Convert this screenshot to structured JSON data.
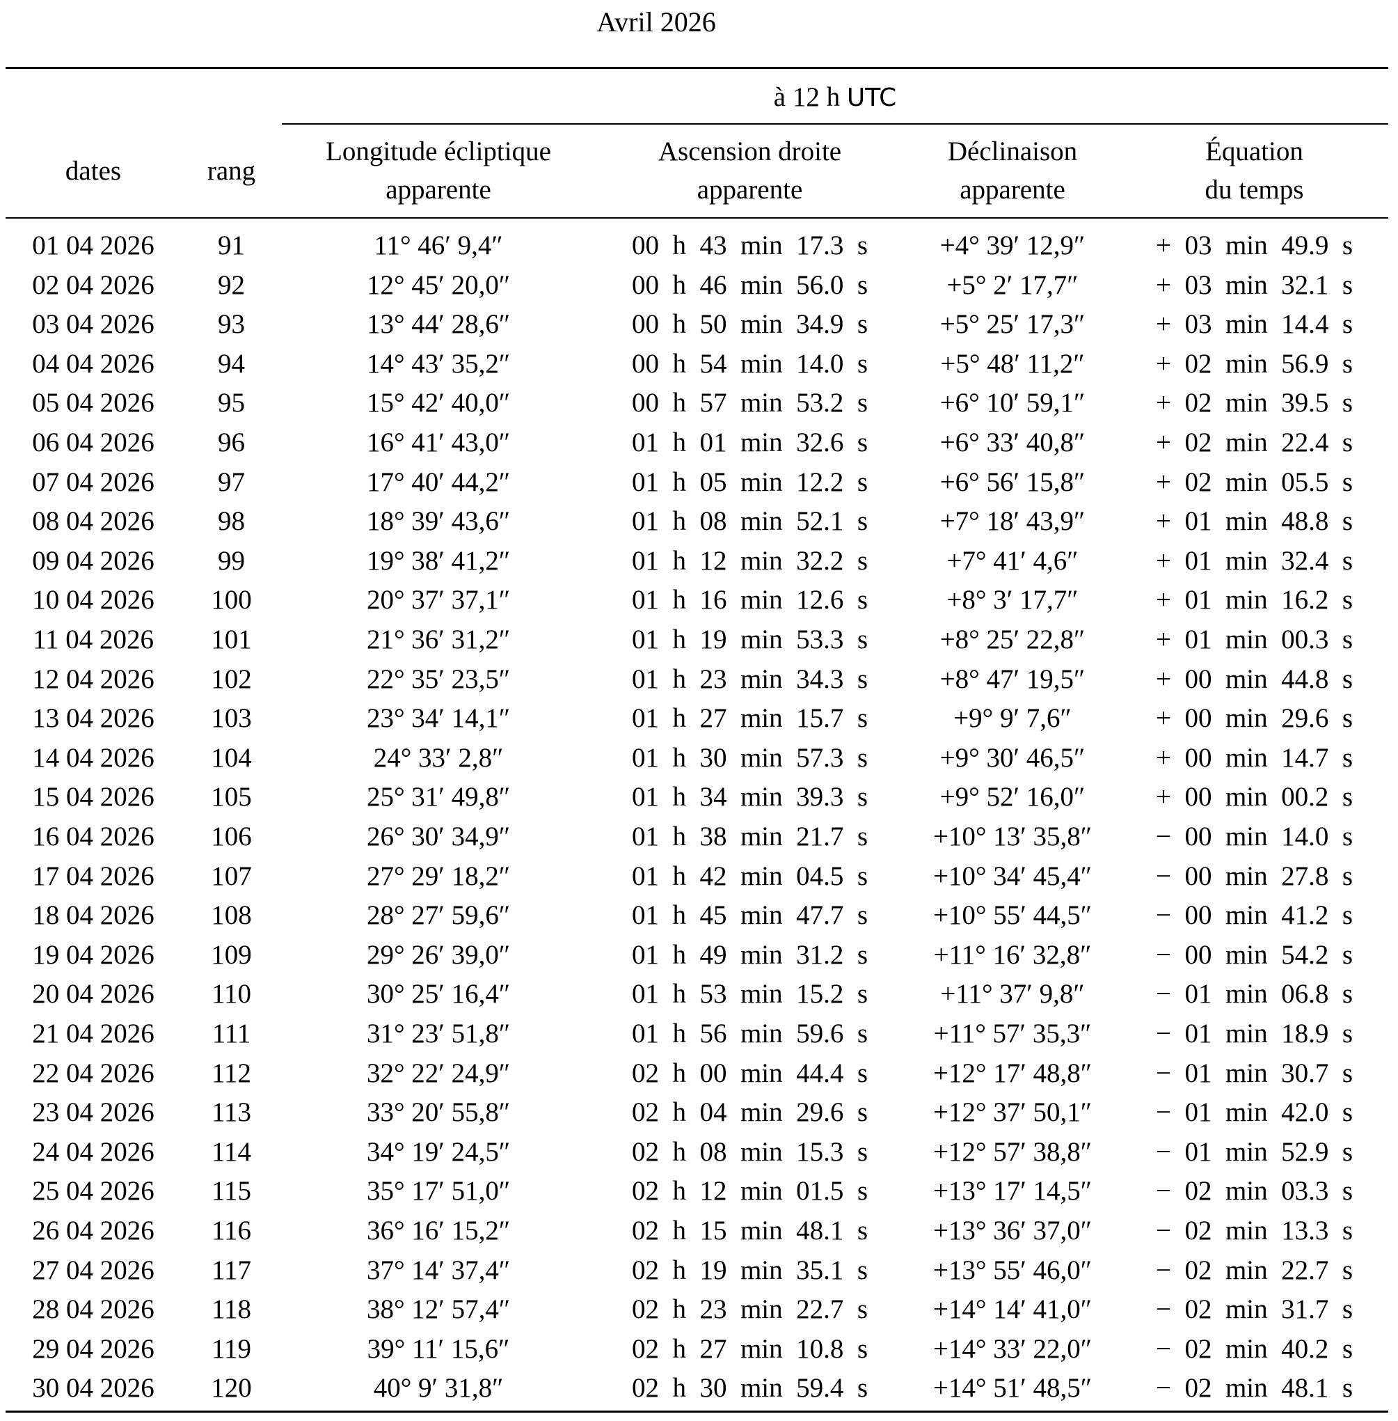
{
  "title": "Avril 2026",
  "header": {
    "utc_prefix": "à 12 h",
    "utc_label": "UTC",
    "dates": "dates",
    "rang": "rang",
    "longitude": [
      "Longitude écliptique",
      "apparente"
    ],
    "ascension": [
      "Ascension droite",
      "apparente"
    ],
    "declinaison": [
      "Déclinaison",
      "apparente"
    ],
    "equation": [
      "Équation",
      "du temps"
    ]
  },
  "rows": [
    [
      "01 04 2026",
      "91",
      "11° 46′ 9,4″",
      "00  h  43  min  17.3  s",
      "+4° 39′ 12,9″",
      "+  03  min  49.9  s"
    ],
    [
      "02 04 2026",
      "92",
      "12° 45′ 20,0″",
      "00  h  46  min  56.0  s",
      "+5° 2′ 17,7″",
      "+  03  min  32.1  s"
    ],
    [
      "03 04 2026",
      "93",
      "13° 44′ 28,6″",
      "00  h  50  min  34.9  s",
      "+5° 25′ 17,3″",
      "+  03  min  14.4  s"
    ],
    [
      "04 04 2026",
      "94",
      "14° 43′ 35,2″",
      "00  h  54  min  14.0  s",
      "+5° 48′ 11,2″",
      "+  02  min  56.9  s"
    ],
    [
      "05 04 2026",
      "95",
      "15° 42′ 40,0″",
      "00  h  57  min  53.2  s",
      "+6° 10′ 59,1″",
      "+  02  min  39.5  s"
    ],
    [
      "06 04 2026",
      "96",
      "16° 41′ 43,0″",
      "01  h  01  min  32.6  s",
      "+6° 33′ 40,8″",
      "+  02  min  22.4  s"
    ],
    [
      "07 04 2026",
      "97",
      "17° 40′ 44,2″",
      "01  h  05  min  12.2  s",
      "+6° 56′ 15,8″",
      "+  02  min  05.5  s"
    ],
    [
      "08 04 2026",
      "98",
      "18° 39′ 43,6″",
      "01  h  08  min  52.1  s",
      "+7° 18′ 43,9″",
      "+  01  min  48.8  s"
    ],
    [
      "09 04 2026",
      "99",
      "19° 38′ 41,2″",
      "01  h  12  min  32.2  s",
      "+7° 41′ 4,6″",
      "+  01  min  32.4  s"
    ],
    [
      "10 04 2026",
      "100",
      "20° 37′ 37,1″",
      "01  h  16  min  12.6  s",
      "+8° 3′ 17,7″",
      "+  01  min  16.2  s"
    ],
    [
      "11 04 2026",
      "101",
      "21° 36′ 31,2″",
      "01  h  19  min  53.3  s",
      "+8° 25′ 22,8″",
      "+  01  min  00.3  s"
    ],
    [
      "12 04 2026",
      "102",
      "22° 35′ 23,5″",
      "01  h  23  min  34.3  s",
      "+8° 47′ 19,5″",
      "+  00  min  44.8  s"
    ],
    [
      "13 04 2026",
      "103",
      "23° 34′ 14,1″",
      "01  h  27  min  15.7  s",
      "+9° 9′ 7,6″",
      "+  00  min  29.6  s"
    ],
    [
      "14 04 2026",
      "104",
      "24° 33′ 2,8″",
      "01  h  30  min  57.3  s",
      "+9° 30′ 46,5″",
      "+  00  min  14.7  s"
    ],
    [
      "15 04 2026",
      "105",
      "25° 31′ 49,8″",
      "01  h  34  min  39.3  s",
      "+9° 52′ 16,0″",
      "+  00  min  00.2  s"
    ],
    [
      "16 04 2026",
      "106",
      "26° 30′ 34,9″",
      "01  h  38  min  21.7  s",
      "+10° 13′ 35,8″",
      "−  00  min  14.0  s"
    ],
    [
      "17 04 2026",
      "107",
      "27° 29′ 18,2″",
      "01  h  42  min  04.5  s",
      "+10° 34′ 45,4″",
      "−  00  min  27.8  s"
    ],
    [
      "18 04 2026",
      "108",
      "28° 27′ 59,6″",
      "01  h  45  min  47.7  s",
      "+10° 55′ 44,5″",
      "−  00  min  41.2  s"
    ],
    [
      "19 04 2026",
      "109",
      "29° 26′ 39,0″",
      "01  h  49  min  31.2  s",
      "+11° 16′ 32,8″",
      "−  00  min  54.2  s"
    ],
    [
      "20 04 2026",
      "110",
      "30° 25′ 16,4″",
      "01  h  53  min  15.2  s",
      "+11° 37′ 9,8″",
      "−  01  min  06.8  s"
    ],
    [
      "21 04 2026",
      "111",
      "31° 23′ 51,8″",
      "01  h  56  min  59.6  s",
      "+11° 57′ 35,3″",
      "−  01  min  18.9  s"
    ],
    [
      "22 04 2026",
      "112",
      "32° 22′ 24,9″",
      "02  h  00  min  44.4  s",
      "+12° 17′ 48,8″",
      "−  01  min  30.7  s"
    ],
    [
      "23 04 2026",
      "113",
      "33° 20′ 55,8″",
      "02  h  04  min  29.6  s",
      "+12° 37′ 50,1″",
      "−  01  min  42.0  s"
    ],
    [
      "24 04 2026",
      "114",
      "34° 19′ 24,5″",
      "02  h  08  min  15.3  s",
      "+12° 57′ 38,8″",
      "−  01  min  52.9  s"
    ],
    [
      "25 04 2026",
      "115",
      "35° 17′ 51,0″",
      "02  h  12  min  01.5  s",
      "+13° 17′ 14,5″",
      "−  02  min  03.3  s"
    ],
    [
      "26 04 2026",
      "116",
      "36° 16′ 15,2″",
      "02  h  15  min  48.1  s",
      "+13° 36′ 37,0″",
      "−  02  min  13.3  s"
    ],
    [
      "27 04 2026",
      "117",
      "37° 14′ 37,4″",
      "02  h  19  min  35.1  s",
      "+13° 55′ 46,0″",
      "−  02  min  22.7  s"
    ],
    [
      "28 04 2026",
      "118",
      "38° 12′ 57,4″",
      "02  h  23  min  22.7  s",
      "+14° 14′ 41,0″",
      "−  02  min  31.7  s"
    ],
    [
      "29 04 2026",
      "119",
      "39° 11′ 15,6″",
      "02  h  27  min  10.8  s",
      "+14° 33′ 22,0″",
      "−  02  min  40.2  s"
    ],
    [
      "30 04 2026",
      "120",
      "40° 9′ 31,8″",
      "02  h  30  min  59.4  s",
      "+14° 51′ 48,5″",
      "−  02  min  48.1  s"
    ]
  ]
}
